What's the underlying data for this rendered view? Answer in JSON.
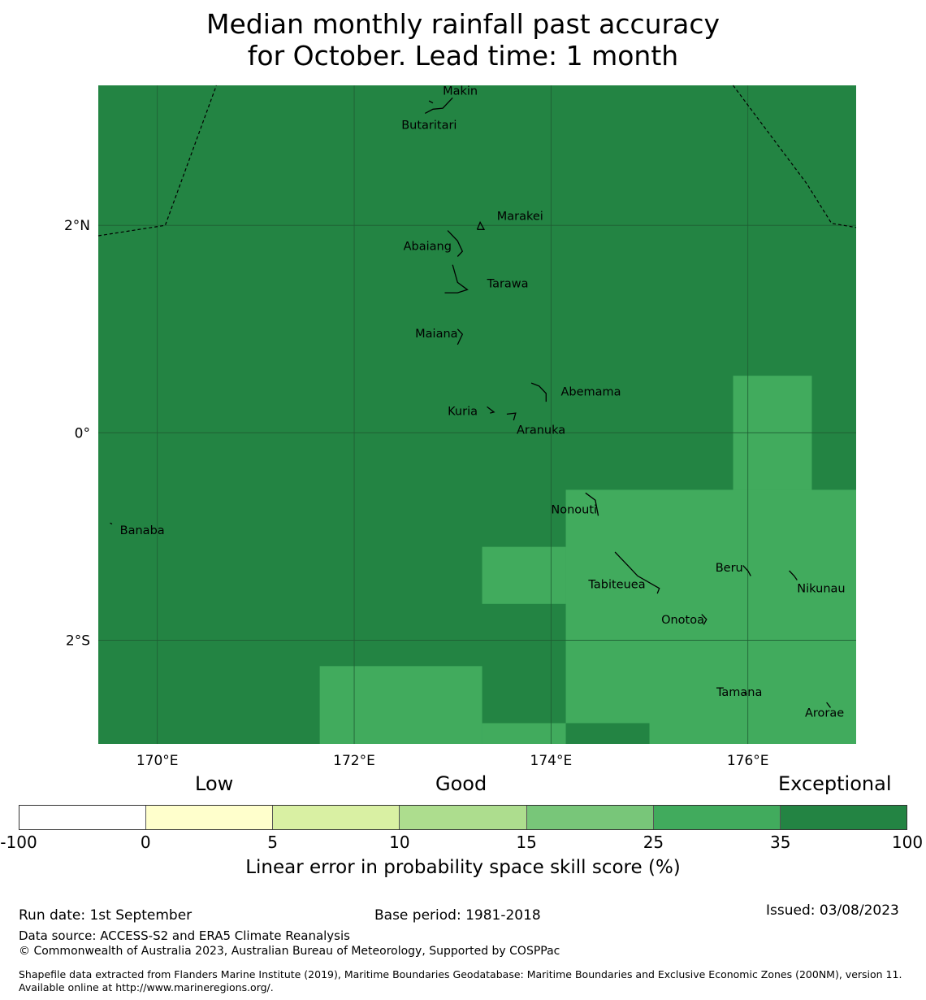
{
  "title": {
    "line1": "Median monthly rainfall past accuracy",
    "line2": "for October. Lead time: 1 month"
  },
  "map": {
    "lon_range": [
      169.4,
      177.1
    ],
    "lat_range": [
      -3.0,
      3.35
    ],
    "x_ticks": [
      {
        "value": 170,
        "label": "170°E"
      },
      {
        "value": 172,
        "label": "172°E"
      },
      {
        "value": 174,
        "label": "174°E"
      },
      {
        "value": 176,
        "label": "176°E"
      }
    ],
    "y_ticks": [
      {
        "value": 2,
        "label": "2°N"
      },
      {
        "value": 0,
        "label": "0°"
      },
      {
        "value": -2,
        "label": "2°S"
      }
    ],
    "colors": {
      "exceptional": "#238443",
      "skill_25_35": "#41ab5d",
      "gridline": "#1f5c33",
      "island_outline": "#000000"
    },
    "base_category": "exceptional",
    "cells_25_35": [
      {
        "lon": [
          175.85,
          176.65
        ],
        "lat": [
          0.55,
          -0.55
        ]
      },
      {
        "lon": [
          174.15,
          177.1
        ],
        "lat": [
          -0.55,
          -3.0
        ]
      },
      {
        "lon": [
          173.3,
          174.15
        ],
        "lat": [
          -1.1,
          -1.65
        ]
      },
      {
        "lon": [
          171.65,
          173.3
        ],
        "lat": [
          -2.25,
          -3.0
        ]
      },
      {
        "lon": [
          173.3,
          174.15
        ],
        "lat": [
          -2.8,
          -3.0
        ]
      }
    ],
    "cells_35_100": [
      {
        "lon": [
          174.15,
          175.0
        ],
        "lat": [
          -2.8,
          -3.0
        ]
      }
    ],
    "eez_boundaries": [
      [
        [
          169.4,
          1.9
        ],
        [
          170.08,
          2.0
        ],
        [
          170.6,
          3.35
        ]
      ],
      [
        [
          175.85,
          3.35
        ],
        [
          176.6,
          2.4
        ],
        [
          176.85,
          2.02
        ],
        [
          177.1,
          1.98
        ]
      ]
    ],
    "islands": [
      {
        "name": "Makin",
        "lon": 172.8,
        "lat": 3.25,
        "label_lon": 172.9,
        "label_lat": 3.3,
        "shape": [
          [
            172.76,
            3.2
          ],
          [
            172.8,
            3.18
          ]
        ]
      },
      {
        "name": "Butaritari",
        "lon": 172.9,
        "lat": 3.15,
        "label_lon": 172.48,
        "label_lat": 2.97,
        "shape": [
          [
            172.72,
            3.08
          ],
          [
            172.8,
            3.12
          ],
          [
            172.9,
            3.13
          ],
          [
            173.0,
            3.23
          ]
        ]
      },
      {
        "name": "Marakei",
        "lon": 173.28,
        "lat": 2.0,
        "label_lon": 173.45,
        "label_lat": 2.09,
        "shape": [
          [
            173.25,
            1.96
          ],
          [
            173.28,
            2.03
          ],
          [
            173.32,
            1.96
          ],
          [
            173.25,
            1.96
          ]
        ]
      },
      {
        "name": "Abaiang",
        "lon": 173.0,
        "lat": 1.85,
        "label_lon": 172.5,
        "label_lat": 1.8,
        "shape": [
          [
            172.95,
            1.95
          ],
          [
            173.05,
            1.85
          ],
          [
            173.1,
            1.75
          ],
          [
            173.05,
            1.7
          ]
        ]
      },
      {
        "name": "Tarawa",
        "lon": 173.0,
        "lat": 1.4,
        "label_lon": 173.35,
        "label_lat": 1.44,
        "shape": [
          [
            173.0,
            1.62
          ],
          [
            173.05,
            1.45
          ],
          [
            173.15,
            1.38
          ],
          [
            173.05,
            1.35
          ],
          [
            172.92,
            1.35
          ]
        ]
      },
      {
        "name": "Maiana",
        "lon": 173.0,
        "lat": 0.95,
        "label_lon": 172.62,
        "label_lat": 0.96,
        "shape": [
          [
            173.05,
            1.0
          ],
          [
            173.1,
            0.95
          ],
          [
            173.05,
            0.85
          ]
        ]
      },
      {
        "name": "Abemama",
        "lon": 173.9,
        "lat": 0.4,
        "label_lon": 174.1,
        "label_lat": 0.4,
        "shape": [
          [
            173.8,
            0.48
          ],
          [
            173.88,
            0.45
          ],
          [
            173.95,
            0.38
          ],
          [
            173.95,
            0.3
          ]
        ]
      },
      {
        "name": "Kuria",
        "lon": 173.4,
        "lat": 0.22,
        "label_lon": 172.95,
        "label_lat": 0.21,
        "shape": [
          [
            173.35,
            0.25
          ],
          [
            173.42,
            0.2
          ],
          [
            173.38,
            0.19
          ]
        ]
      },
      {
        "name": "Aranuka",
        "lon": 173.6,
        "lat": 0.17,
        "label_lon": 173.65,
        "label_lat": 0.03,
        "shape": [
          [
            173.55,
            0.18
          ],
          [
            173.64,
            0.19
          ],
          [
            173.62,
            0.12
          ]
        ]
      },
      {
        "name": "Nonouti",
        "lon": 174.4,
        "lat": -0.7,
        "label_lon": 174.0,
        "label_lat": -0.74,
        "shape": [
          [
            174.35,
            -0.58
          ],
          [
            174.45,
            -0.65
          ],
          [
            174.48,
            -0.8
          ]
        ]
      },
      {
        "name": "Tabiteuea",
        "lon": 174.85,
        "lat": -1.35,
        "label_lon": 174.38,
        "label_lat": -1.46,
        "shape": [
          [
            174.65,
            -1.15
          ],
          [
            174.78,
            -1.28
          ],
          [
            174.88,
            -1.38
          ],
          [
            175.1,
            -1.5
          ],
          [
            175.08,
            -1.55
          ]
        ]
      },
      {
        "name": "Beru",
        "lon": 176.0,
        "lat": -1.33,
        "label_lon": 175.67,
        "label_lat": -1.3,
        "shape": [
          [
            175.95,
            -1.28
          ],
          [
            176.0,
            -1.33
          ],
          [
            176.03,
            -1.38
          ]
        ]
      },
      {
        "name": "Nikunau",
        "lon": 176.45,
        "lat": -1.35,
        "label_lon": 176.5,
        "label_lat": -1.5,
        "shape": [
          [
            176.42,
            -1.33
          ],
          [
            176.47,
            -1.38
          ],
          [
            176.5,
            -1.42
          ]
        ]
      },
      {
        "name": "Onotoa",
        "lon": 175.55,
        "lat": -1.8,
        "label_lon": 175.12,
        "label_lat": -1.8,
        "shape": [
          [
            175.53,
            -1.75
          ],
          [
            175.58,
            -1.8
          ],
          [
            175.55,
            -1.85
          ]
        ]
      },
      {
        "name": "Tamana",
        "lon": 175.97,
        "lat": -2.5,
        "label_lon": 175.68,
        "label_lat": -2.5,
        "shape": [
          [
            175.95,
            -2.5
          ],
          [
            175.99,
            -2.52
          ]
        ]
      },
      {
        "name": "Arorae",
        "lon": 176.82,
        "lat": -2.63,
        "label_lon": 176.58,
        "label_lat": -2.7,
        "shape": [
          [
            176.8,
            -2.6
          ],
          [
            176.84,
            -2.65
          ]
        ]
      },
      {
        "name": "Banaba",
        "lon": 169.53,
        "lat": -0.87,
        "label_lon": 169.62,
        "label_lat": -0.94,
        "shape": [
          [
            169.52,
            -0.87
          ],
          [
            169.54,
            -0.88
          ]
        ]
      }
    ]
  },
  "legend": {
    "category_labels": {
      "low": "Low",
      "good": "Good",
      "exceptional": "Exceptional"
    },
    "colors": [
      "#ffffff",
      "#ffffcc",
      "#d9f0a3",
      "#addd8e",
      "#78c679",
      "#41ab5d",
      "#238443"
    ],
    "ticks": [
      "-100",
      "0",
      "5",
      "10",
      "15",
      "25",
      "35",
      "100"
    ],
    "label": "Linear error in probability space skill score (%)"
  },
  "footer": {
    "run_date": "Run date: 1st September",
    "base_period": "Base period: 1981-2018",
    "issued": "Issued: 03/08/2023",
    "data_source": "Data source: ACCESS-S2 and ERA5 Climate Reanalysis",
    "copyright": "© Commonwealth of Australia 2023, Australian Bureau of Meteorology, Supported by COSPPac",
    "shapefile": "Shapefile data extracted from Flanders Marine Institute (2019), Maritime Boundaries Geodatabase: Maritime Boundaries and Exclusive Economic Zones (200NM), version 11. Available online at http://www.marineregions.org/."
  }
}
